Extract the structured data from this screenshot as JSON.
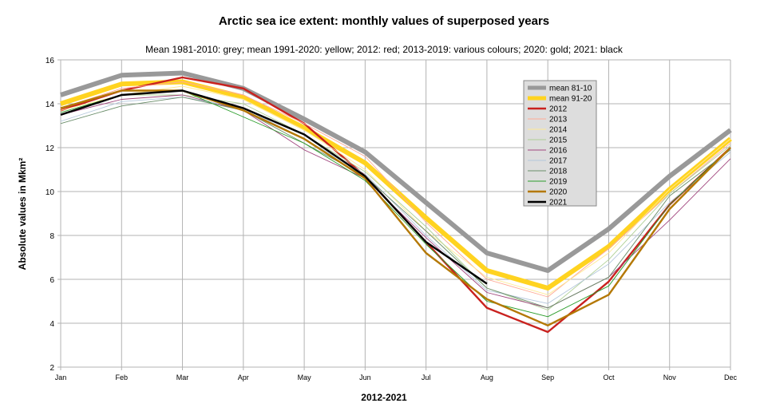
{
  "chart_data": {
    "type": "line",
    "title": "Arctic sea ice extent: monthly values of superposed years",
    "subtitle": "Mean 1981-2010: grey; mean 1991-2020: yellow; 2012: red; 2013-2019: various colours; 2020: gold; 2021: black",
    "xlabel": "2012-2021",
    "ylabel": "Absolute values  in Mkm²",
    "ylim": [
      2,
      16
    ],
    "yticks": [
      2,
      4,
      6,
      8,
      10,
      12,
      14,
      16
    ],
    "grid": true,
    "legend_position": "top-right",
    "categories": [
      "Jan",
      "Feb",
      "Mar",
      "Apr",
      "May",
      "Jun",
      "Jul",
      "Aug",
      "Sep",
      "Oct",
      "Nov",
      "Dec"
    ],
    "series": [
      {
        "name": "mean 81-10",
        "color": "#999999",
        "weight": "thick",
        "values": [
          14.4,
          15.3,
          15.4,
          14.7,
          13.3,
          11.8,
          9.5,
          7.2,
          6.4,
          8.3,
          10.7,
          12.8
        ]
      },
      {
        "name": "mean 91-20",
        "color": "#ffd320",
        "weight": "thick",
        "values": [
          14.0,
          14.9,
          15.0,
          14.3,
          12.9,
          11.3,
          8.8,
          6.4,
          5.6,
          7.5,
          10.1,
          12.4
        ]
      },
      {
        "name": "2012",
        "color": "#c9211e",
        "weight": "medium",
        "values": [
          13.7,
          14.6,
          15.2,
          14.7,
          13.1,
          10.7,
          7.7,
          4.7,
          3.6,
          5.9,
          9.4,
          12.0
        ]
      },
      {
        "name": "2013",
        "color": "#ffaa95",
        "weight": "thin",
        "values": [
          13.8,
          14.7,
          15.0,
          14.4,
          13.1,
          11.6,
          8.6,
          6.0,
          5.2,
          7.4,
          9.9,
          12.2
        ]
      },
      {
        "name": "2014",
        "color": "#ffe994",
        "weight": "thin",
        "values": [
          13.7,
          14.4,
          14.8,
          14.2,
          12.8,
          11.0,
          8.2,
          6.1,
          5.3,
          7.2,
          10.1,
          12.4
        ]
      },
      {
        "name": "2015",
        "color": "#afd095",
        "weight": "thin",
        "values": [
          13.6,
          14.4,
          14.4,
          14.0,
          12.6,
          10.9,
          8.4,
          5.6,
          4.6,
          6.9,
          9.9,
          12.1
        ]
      },
      {
        "name": "2016",
        "color": "#a1467e",
        "weight": "thin",
        "values": [
          13.5,
          14.2,
          14.4,
          13.7,
          11.9,
          10.6,
          7.9,
          5.4,
          4.7,
          6.1,
          8.7,
          11.5
        ]
      },
      {
        "name": "2017",
        "color": "#b4c7dc",
        "weight": "thin",
        "values": [
          13.2,
          14.1,
          14.3,
          13.8,
          12.4,
          10.8,
          8.0,
          5.5,
          4.9,
          6.7,
          9.5,
          11.8
        ]
      },
      {
        "name": "2018",
        "color": "#6b8e6b",
        "weight": "thin",
        "values": [
          13.1,
          13.9,
          14.3,
          13.7,
          12.2,
          10.7,
          8.2,
          5.6,
          4.7,
          6.1,
          9.8,
          11.9
        ]
      },
      {
        "name": "2019",
        "color": "#2a9d2a",
        "weight": "thin",
        "values": [
          13.6,
          14.4,
          14.6,
          13.4,
          12.2,
          10.5,
          7.6,
          5.0,
          4.3,
          5.7,
          9.4,
          12.0
        ]
      },
      {
        "name": "2020",
        "color": "#b47804",
        "weight": "medium",
        "values": [
          13.8,
          14.6,
          14.6,
          13.7,
          12.4,
          10.6,
          7.2,
          5.1,
          3.9,
          5.3,
          9.2,
          12.0
        ]
      },
      {
        "name": "2021",
        "color": "#000000",
        "weight": "medium",
        "values": [
          13.5,
          14.4,
          14.6,
          13.8,
          12.6,
          10.7,
          7.7,
          5.8,
          null,
          null,
          null,
          null
        ]
      }
    ]
  }
}
